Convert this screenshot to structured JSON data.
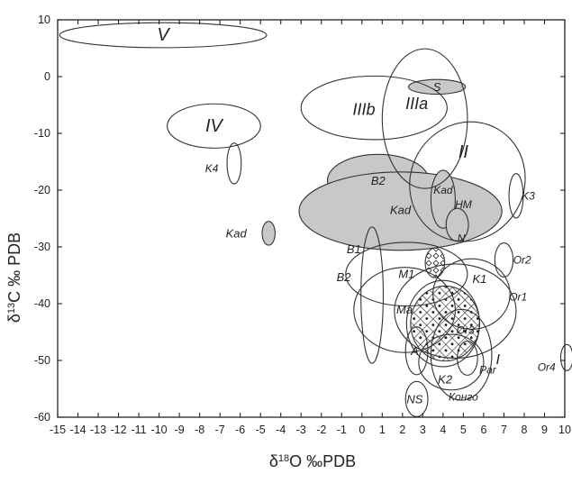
{
  "chart_data": {
    "type": "scatter",
    "xlabel_parts": {
      "delta": "δ",
      "sup": "18",
      "rest": "O ‰PDB"
    },
    "ylabel_parts": {
      "delta": "δ",
      "sup": "13",
      "rest": "C ‰ PDB"
    },
    "xlim": [
      -15,
      10
    ],
    "ylim": [
      -60,
      10
    ],
    "xticks": [
      -15,
      -14,
      -13,
      -12,
      -11,
      -10,
      -9,
      -8,
      -7,
      -6,
      -5,
      -4,
      -3,
      -2,
      -1,
      0,
      1,
      2,
      3,
      4,
      5,
      6,
      7,
      8,
      9,
      10
    ],
    "xtick_labels": [
      "-15",
      "-14",
      "-13",
      "-12",
      "-11",
      "-10",
      "-9",
      "-8",
      "-7",
      "-6",
      "-5",
      "-4",
      "-3",
      "-2",
      "-1",
      "0",
      "1",
      "2",
      "3",
      "4",
      "5",
      "6",
      "7",
      "8",
      "9",
      "10"
    ],
    "yticks": [
      10,
      0,
      -10,
      -20,
      -30,
      -40,
      -50,
      -60
    ],
    "ytick_labels": [
      "10",
      "0",
      "-10",
      "-20",
      "-30",
      "-40",
      "-50",
      "-60"
    ],
    "grid": false,
    "regions": [
      {
        "label": "V",
        "cx": -9.8,
        "cy": 7.3,
        "rx": 5.1,
        "ry": 2.2,
        "angle": 0,
        "fill": "none",
        "label_x": -9.8,
        "label_y": 7.3,
        "font_size": 20
      },
      {
        "label": "IV",
        "cx": -7.3,
        "cy": -8.7,
        "rx": 2.3,
        "ry": 3.9,
        "angle": 0,
        "fill": "none",
        "label_x": -7.3,
        "label_y": -8.7,
        "font_size": 20
      },
      {
        "label": "K4",
        "cx": -6.3,
        "cy": -15.3,
        "rx": 0.35,
        "ry": 3.6,
        "angle": 0,
        "fill": "none",
        "label_x": -7.4,
        "label_y": -16.2,
        "font_size": 12
      },
      {
        "label": "Kad",
        "cx": -4.6,
        "cy": -27.6,
        "rx": 0.32,
        "ry": 2.1,
        "angle": 0,
        "fill": "#c8c8c8",
        "label_x": -6.2,
        "label_y": -27.6,
        "font_size": 13
      },
      {
        "label": "B1",
        "cx": 0.5,
        "cy": -38.5,
        "rx": 0.55,
        "ry": 12.0,
        "angle": 0,
        "fill": "none",
        "label_x": -0.4,
        "label_y": -30.4,
        "font_size": 13
      },
      {
        "label": "B2",
        "cx": 0.8,
        "cy": -18.3,
        "rx": 2.5,
        "ry": 4.6,
        "angle": 0,
        "fill": "#c8c8c8",
        "label_x": 0.8,
        "label_y": -18.3,
        "font_size": 13
      },
      {
        "label": "Kad",
        "cx": 1.9,
        "cy": -23.7,
        "rx": 5.0,
        "ry": 6.9,
        "angle": 0,
        "fill": "#c8c8c8",
        "label_x": 1.9,
        "label_y": -23.5,
        "font_size": 13
      },
      {
        "label": "IIIb",
        "cx": 0.6,
        "cy": -5.5,
        "rx": 3.6,
        "ry": 5.6,
        "angle": 0,
        "fill": "none",
        "label_x": 0.1,
        "label_y": -5.8,
        "font_size": 18
      },
      {
        "label": "IIIa",
        "cx": 3.1,
        "cy": -7.4,
        "rx": 2.1,
        "ry": 12.3,
        "angle": 0,
        "fill": "none",
        "label_x": 2.7,
        "label_y": -4.8,
        "font_size": 18
      },
      {
        "label": "S",
        "cx": 3.7,
        "cy": -1.8,
        "rx": 1.4,
        "ry": 1.3,
        "angle": 0,
        "fill": "#c8c8c8",
        "label_x": 3.7,
        "label_y": -1.8,
        "font_size": 13
      },
      {
        "label": "II",
        "cx": 5.2,
        "cy": -18.5,
        "rx": 2.8,
        "ry": 10.7,
        "angle": 30,
        "fill": "none",
        "label_x": 5.0,
        "label_y": -13.3,
        "font_size": 20
      },
      {
        "label": "Kad",
        "cx": 4.0,
        "cy": -21.6,
        "rx": 0.6,
        "ry": 5.1,
        "angle": 0,
        "fill": "#c8c8c8",
        "label_x": 4.0,
        "label_y": -20.0,
        "font_size": 12
      },
      {
        "label": "HM",
        "cx": 4.7,
        "cy": -26.1,
        "rx": 0.55,
        "ry": 2.9,
        "angle": 0,
        "fill": "#c8c8c8",
        "label_x": 5.0,
        "label_y": -22.5,
        "font_size": 12
      },
      {
        "label": "K3",
        "cx": 7.6,
        "cy": -21.0,
        "rx": 0.35,
        "ry": 3.9,
        "angle": 0,
        "fill": "none",
        "label_x": 8.2,
        "label_y": -21.0,
        "font_size": 12
      },
      {
        "label": "Or2",
        "cx": 7.0,
        "cy": -32.3,
        "rx": 0.45,
        "ry": 3.0,
        "angle": 0,
        "fill": "none",
        "label_x": 7.9,
        "label_y": -32.3,
        "font_size": 12
      },
      {
        "label": "M1",
        "cx": 2.2,
        "cy": -34.8,
        "rx": 3.0,
        "ry": 5.6,
        "angle": 0,
        "fill": "none",
        "label_x": 2.2,
        "label_y": -34.8,
        "font_size": 13
      },
      {
        "label": "Ma",
        "cx": 2.1,
        "cy": -41.1,
        "rx": 2.5,
        "ry": 7.5,
        "angle": 0,
        "fill": "none",
        "label_x": 2.1,
        "label_y": -41.0,
        "font_size": 13
      },
      {
        "label": "",
        "cx": 3.6,
        "cy": -32.8,
        "rx": 0.48,
        "ry": 2.6,
        "angle": 0,
        "fill": "url(#diamondPattern)",
        "label_x": 3.6,
        "label_y": -32.8,
        "font_size": 12
      },
      {
        "label": "K1",
        "cx": 5.4,
        "cy": -38.3,
        "rx": 1.9,
        "ry": 6.2,
        "angle": 0,
        "fill": "none",
        "label_x": 5.8,
        "label_y": -35.6,
        "font_size": 13
      },
      {
        "label": "Or1",
        "cx": 4.6,
        "cy": -41.3,
        "rx": 3.0,
        "ry": 8.3,
        "angle": 0,
        "fill": "none",
        "label_x": 7.7,
        "label_y": -38.8,
        "font_size": 12
      },
      {
        "label": "A",
        "cx": 2.7,
        "cy": -48.3,
        "rx": 0.55,
        "ry": 4.2,
        "angle": 0,
        "fill": "none",
        "label_x": 2.6,
        "label_y": -48.3,
        "font_size": 13
      },
      {
        "label": "NS",
        "cx": 2.7,
        "cy": -56.8,
        "rx": 0.55,
        "ry": 3.1,
        "angle": 0,
        "fill": "none",
        "label_x": 2.6,
        "label_y": -56.8,
        "font_size": 13
      },
      {
        "label": "Or3",
        "cx": 4.0,
        "cy": -43.5,
        "rx": 1.8,
        "ry": 7.6,
        "angle": 0,
        "fill": "none",
        "label_x": 5.1,
        "label_y": -44.7,
        "font_size": 12
      },
      {
        "label": "K2",
        "cx": 4.4,
        "cy": -50.3,
        "rx": 1.6,
        "ry": 4.9,
        "angle": 0,
        "fill": "none",
        "label_x": 4.1,
        "label_y": -53.3,
        "font_size": 13
      },
      {
        "label": "Par",
        "cx": 5.2,
        "cy": -49.6,
        "rx": 0.5,
        "ry": 3.0,
        "angle": 0,
        "fill": "none",
        "label_x": 6.2,
        "label_y": -51.7,
        "font_size": 12
      },
      {
        "label": "I",
        "cx": 4.9,
        "cy": -49.0,
        "rx": 1.5,
        "ry": 8.0,
        "angle": 0,
        "fill": "none",
        "label_x": 6.7,
        "label_y": -49.9,
        "font_size": 16
      },
      {
        "label": "Or4",
        "cx": 10.1,
        "cy": -49.5,
        "rx": 0.3,
        "ry": 2.3,
        "angle": 0,
        "fill": "none",
        "label_x": 9.1,
        "label_y": -51.2,
        "font_size": 12
      },
      {
        "label": "Конго",
        "cx": 4.1,
        "cy": -43.5,
        "rx": 1.7,
        "ry": 6.6,
        "angle": 0,
        "fill": "url(#crossPattern)",
        "label_x": 5.0,
        "label_y": -56.4,
        "font_size": 12
      }
    ],
    "extra_labels": [
      {
        "label": "N",
        "x": 4.9,
        "y": -28.5,
        "font_size": 12
      },
      {
        "label": "B2",
        "x": -0.9,
        "y": -35.3,
        "font_size": 13
      }
    ]
  }
}
